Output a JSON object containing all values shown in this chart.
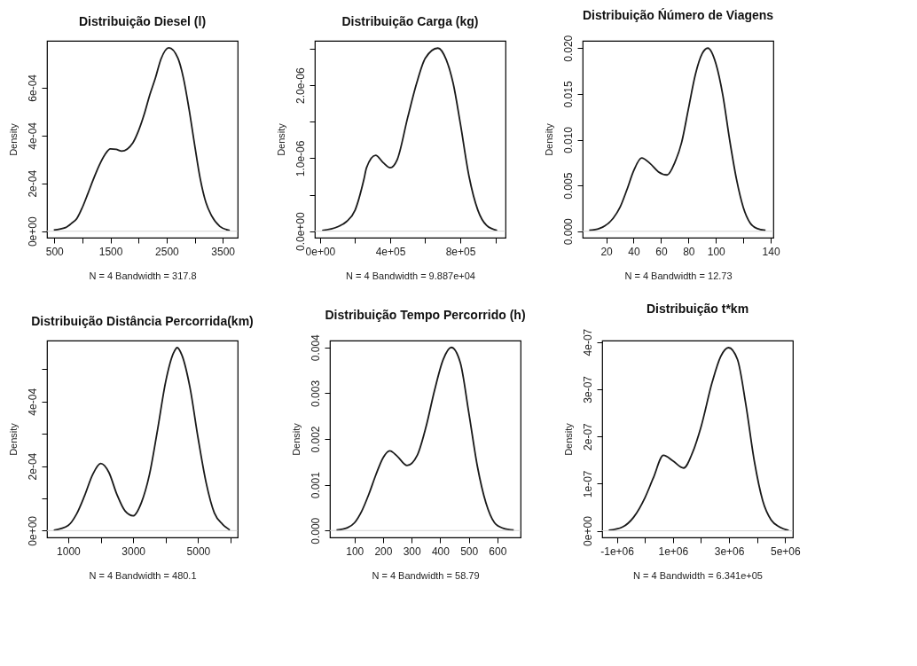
{
  "chart_data": [
    {
      "type": "line",
      "title": "Distribuição Diesel (l)",
      "xlabel": "N = 4   Bandwidth = 317.8",
      "ylabel": "Density",
      "x": [
        490,
        700,
        800,
        900,
        1000,
        1100,
        1200,
        1300,
        1400,
        1500,
        1600,
        1700,
        1900,
        2000,
        2100,
        2200,
        2300,
        2400,
        2540,
        2700,
        2800,
        2900,
        3000,
        3100,
        3200,
        3300,
        3450,
        3626
      ],
      "series": [
        {
          "color": "#1a1a1a",
          "values": [
            5e-06,
            1.5e-05,
            3.2e-05,
            5.3e-05,
            0.0001,
            0.000159,
            0.00022,
            0.000276,
            0.00032,
            0.000344,
            0.000342,
            0.000335,
            0.00037,
            0.00042,
            0.000488,
            0.00057,
            0.00064,
            0.00072,
            0.000767,
            0.000724,
            0.00064,
            0.00051,
            0.00036,
            0.000218,
            0.00012,
            6.5e-05,
            2e-05,
            3e-06
          ]
        }
      ],
      "xlim": [
        369,
        3766
      ],
      "ylim": [
        -2.7e-05,
        0.000796
      ],
      "xticks": [
        500,
        {
          "value": 1000,
          "label": null
        },
        1500,
        {
          "value": 2000,
          "label": null
        },
        2500,
        {
          "value": 3000,
          "label": null
        },
        3500
      ],
      "yticks": [
        {
          "value": 0,
          "label": "0e+00"
        },
        {
          "value": 0.0002,
          "label": "2e-04"
        },
        {
          "value": 0.0004,
          "label": "4e-04"
        },
        {
          "value": 0.0006,
          "label": "6e-04"
        }
      ],
      "ref_lines": [
        {
          "axis": "y",
          "value": 0,
          "color": "#d3d3d3"
        }
      ]
    },
    {
      "type": "line",
      "title": "Distribuição Carga (kg)",
      "xlabel": "N = 4   Bandwidth = 9.887e+04",
      "ylabel": "Density",
      "x": [
        12000,
        100000,
        150000,
        200000,
        250000,
        265000,
        317000,
        360000,
        400000,
        440000,
        500000,
        550000,
        600000,
        672000,
        720000,
        760000,
        800000,
        850000,
        900000,
        950000,
        1010000
      ],
      "series": [
        {
          "color": "#1a1a1a",
          "values": [
            1e-08,
            6e-08,
            1.3e-07,
            2.9e-07,
            7.1e-07,
            8.7e-07,
            1.04e-06,
            9.4e-07,
            8.7e-07,
            9.8e-07,
            1.56e-06,
            2.02e-06,
            2.37e-06,
            2.51e-06,
            2.35e-06,
            2.02e-06,
            1.48e-06,
            7.5e-07,
            2.9e-07,
            8e-08,
            1e-08
          ]
        }
      ],
      "xlim": [
        -30000,
        1058000
      ],
      "ylim": [
        -8.9e-08,
        2.61e-06
      ],
      "xticks": [
        {
          "value": 0,
          "label": "0e+00"
        },
        {
          "value": 200000,
          "label": null
        },
        {
          "value": 400000,
          "label": "4e+05"
        },
        {
          "value": 600000,
          "label": null
        },
        {
          "value": 800000,
          "label": "8e+05"
        },
        {
          "value": 1000000,
          "label": null
        }
      ],
      "yticks": [
        {
          "value": 0,
          "label": "0.0e+00"
        },
        {
          "value": 5e-07,
          "label": null
        },
        {
          "value": 1e-06,
          "label": "1.0e-06"
        },
        {
          "value": 1.5e-06,
          "label": null
        },
        {
          "value": 2e-06,
          "label": "2.0e-06"
        },
        {
          "value": 2.5e-06,
          "label": null
        }
      ],
      "ref_lines": [
        {
          "axis": "y",
          "value": 0,
          "color": "#d3d3d3"
        }
      ]
    },
    {
      "type": "line",
      "title": "Distribuição Ńúmero de Viagens",
      "xlabel": "N = 4   Bandwidth = 12.73",
      "ylabel": "Density",
      "x": [
        7.6,
        15,
        25,
        30,
        35,
        40,
        45.8,
        52,
        58,
        64.4,
        70,
        75,
        80,
        85,
        90,
        94.1,
        100,
        105,
        110,
        115,
        120,
        125,
        130,
        136.2
      ],
      "series": [
        {
          "color": "#1a1a1a",
          "values": [
            0.0001,
            0.0003,
            0.0014,
            0.0026,
            0.0045,
            0.0066,
            0.008,
            0.0074,
            0.0065,
            0.00615,
            0.0075,
            0.0097,
            0.0134,
            0.0171,
            0.0194,
            0.02,
            0.0183,
            0.0149,
            0.01,
            0.0057,
            0.0026,
            0.0009,
            0.0003,
            0.0001
          ]
        }
      ],
      "xlim": [
        2.8,
        141.9
      ],
      "ylim": [
        -0.0007,
        0.0208
      ],
      "xticks": [
        20,
        40,
        60,
        80,
        100,
        {
          "value": 120,
          "label": null
        },
        140
      ],
      "yticks": [
        {
          "value": 0,
          "label": "0.000"
        },
        {
          "value": 0.005,
          "label": "0.005"
        },
        {
          "value": 0.01,
          "label": "0.010"
        },
        {
          "value": 0.015,
          "label": "0.015"
        },
        {
          "value": 0.02,
          "label": "0.020"
        }
      ],
      "ref_lines": [
        {
          "axis": "y",
          "value": 0,
          "color": "#d3d3d3"
        }
      ]
    },
    {
      "type": "line",
      "title": "Distribuição Distância Percorrida(km)",
      "xlabel": "N = 4   Bandwidth = 480.1",
      "ylabel": "Density",
      "x": [
        556,
        1000,
        1250,
        1500,
        1750,
        2000,
        2250,
        2500,
        2750,
        3000,
        3250,
        3500,
        3750,
        4000,
        4250,
        4355,
        4500,
        4750,
        5000,
        5250,
        5500,
        5750,
        5976
      ],
      "series": [
        {
          "color": "#1a1a1a",
          "values": [
            1e-06,
            1.6e-05,
            5e-05,
            0.000107,
            0.000173,
            0.000208,
            0.000181,
            0.000112,
            6.1e-05,
            4.6e-05,
            8.6e-05,
            0.000173,
            0.000312,
            0.000461,
            0.000552,
            0.000567,
            0.000544,
            0.000443,
            0.000286,
            0.000147,
            5.5e-05,
            2e-05,
            2e-06
          ]
        }
      ],
      "xlim": [
        347,
        6218
      ],
      "ylim": [
        -2.1e-05,
        0.000589
      ],
      "xticks": [
        1000,
        {
          "value": 2000,
          "label": null
        },
        3000,
        {
          "value": 4000,
          "label": null
        },
        5000,
        {
          "value": 6000,
          "label": null
        }
      ],
      "yticks": [
        {
          "value": 0,
          "label": "0e+00"
        },
        {
          "value": 0.0001,
          "label": null
        },
        {
          "value": 0.0002,
          "label": "2e-04"
        },
        {
          "value": 0.0003,
          "label": null
        },
        {
          "value": 0.0004,
          "label": "4e-04"
        },
        {
          "value": 0.0005,
          "label": null
        }
      ],
      "ref_lines": [
        {
          "axis": "y",
          "value": 0,
          "color": "#d3d3d3"
        }
      ]
    },
    {
      "type": "line",
      "title": "Distribuição Tempo Percorrido (h)",
      "xlabel": "N = 4   Bandwidth = 58.79",
      "ylabel": "Density",
      "x": [
        37,
        75,
        100,
        125,
        150,
        175,
        200,
        223.6,
        250,
        283.6,
        320,
        350,
        380,
        410,
        438.5,
        470,
        500,
        530,
        560,
        590,
        620,
        657
      ],
      "series": [
        {
          "color": "#1a1a1a",
          "values": [
            1e-05,
            6e-05,
            0.00017,
            0.00042,
            0.00079,
            0.00122,
            0.00159,
            0.00174,
            0.00162,
            0.00142,
            0.00165,
            0.00226,
            0.00306,
            0.00373,
            0.004,
            0.00367,
            0.00257,
            0.0014,
            0.0006,
            0.00017,
            5e-05,
            1e-05
          ]
        }
      ],
      "xlim": [
        14,
        681
      ],
      "ylim": [
        -0.00015,
        0.00415
      ],
      "xticks": [
        100,
        200,
        300,
        400,
        500,
        600
      ],
      "yticks": [
        {
          "value": 0,
          "label": "0.000"
        },
        {
          "value": 0.001,
          "label": "0.001"
        },
        {
          "value": 0.002,
          "label": "0.002"
        },
        {
          "value": 0.003,
          "label": "0.003"
        },
        {
          "value": 0.004,
          "label": "0.004"
        }
      ],
      "ref_lines": [
        {
          "axis": "y",
          "value": 0,
          "color": "#d3d3d3"
        }
      ]
    },
    {
      "type": "line",
      "title": "Distribuição t*km",
      "xlabel": "N = 4   Bandwidth = 6.341e+05",
      "ylabel": "Density",
      "x": [
        -1290000,
        -800000,
        -400000,
        0,
        300000,
        660000,
        1000000,
        1380000,
        1700000,
        2000000,
        2400000,
        2700000,
        2980000,
        3300000,
        3600000,
        3900000,
        4200000,
        4500000,
        4800000,
        5130000
      ],
      "series": [
        {
          "color": "#1a1a1a",
          "values": [
            1e-09,
            8e-09,
            2.9e-08,
            7e-08,
            1.12e-07,
            1.6e-07,
            1.48e-07,
            1.33e-07,
            1.66e-07,
            2.2e-07,
            3.15e-07,
            3.69e-07,
            3.88e-07,
            3.63e-07,
            2.67e-07,
            1.48e-07,
            6.4e-08,
            2.3e-08,
            8e-09,
            1e-09
          ]
        }
      ],
      "xlim": [
        -1525000,
        5275000
      ],
      "ylim": [
        -1.4e-08,
        4.03e-07
      ],
      "xticks": [
        {
          "value": -1000000,
          "label": "-1e+06"
        },
        {
          "value": 0,
          "label": null
        },
        {
          "value": 1000000,
          "label": "1e+06"
        },
        {
          "value": 2000000,
          "label": null
        },
        {
          "value": 3000000,
          "label": "3e+06"
        },
        {
          "value": 4000000,
          "label": null
        },
        {
          "value": 5000000,
          "label": "5e+06"
        }
      ],
      "yticks": [
        {
          "value": 0,
          "label": "0e+00"
        },
        {
          "value": 1e-07,
          "label": "1e-07"
        },
        {
          "value": 2e-07,
          "label": "2e-07"
        },
        {
          "value": 3e-07,
          "label": "3e-07"
        },
        {
          "value": 4e-07,
          "label": "4e-07"
        }
      ],
      "ref_lines": [
        {
          "axis": "y",
          "value": 0,
          "color": "#d3d3d3"
        }
      ]
    }
  ]
}
